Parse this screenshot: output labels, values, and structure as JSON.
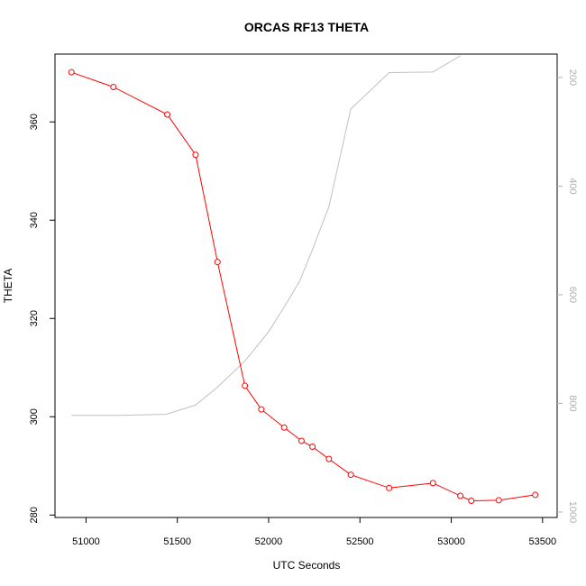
{
  "chart_data": {
    "type": "line",
    "title": "ORCAS RF13 THETA",
    "xlabel": "UTC Seconds",
    "ylabel": "THETA",
    "xlim": [
      50830,
      53580
    ],
    "ylim": [
      279.5,
      373.8
    ],
    "y2lim": [
      1010,
      157
    ],
    "x_ticks": [
      51000,
      51500,
      52000,
      52500,
      53000,
      53500
    ],
    "y_ticks": [
      280,
      300,
      320,
      340,
      360
    ],
    "y2_ticks": [
      200,
      400,
      600,
      800,
      1000
    ],
    "grid": false,
    "series": [
      {
        "role": "theta",
        "color": "#ff0000",
        "marker": "open-circle",
        "x": [
          50920,
          51150,
          51445,
          51600,
          51720,
          51870,
          51960,
          52085,
          52180,
          52240,
          52330,
          52450,
          52660,
          52900,
          53050,
          53110,
          53260,
          53460
        ],
        "y": [
          370.1,
          367.1,
          361.5,
          353.3,
          331.5,
          306.3,
          301.5,
          297.8,
          295.1,
          293.9,
          291.4,
          288.2,
          285.5,
          286.5,
          283.9,
          282.9,
          283.0,
          284.1
        ]
      },
      {
        "role": "pressure",
        "color": "#c0c0c0",
        "axis": "right",
        "x": [
          50920,
          51180,
          51440,
          51600,
          51720,
          51870,
          52000,
          52090,
          52170,
          52240,
          52330,
          52450,
          52660,
          52900,
          53050
        ],
        "y": [
          822,
          822,
          820,
          803,
          770,
          722,
          668,
          620,
          575,
          517,
          438,
          258,
          191,
          190,
          160
        ]
      }
    ]
  }
}
